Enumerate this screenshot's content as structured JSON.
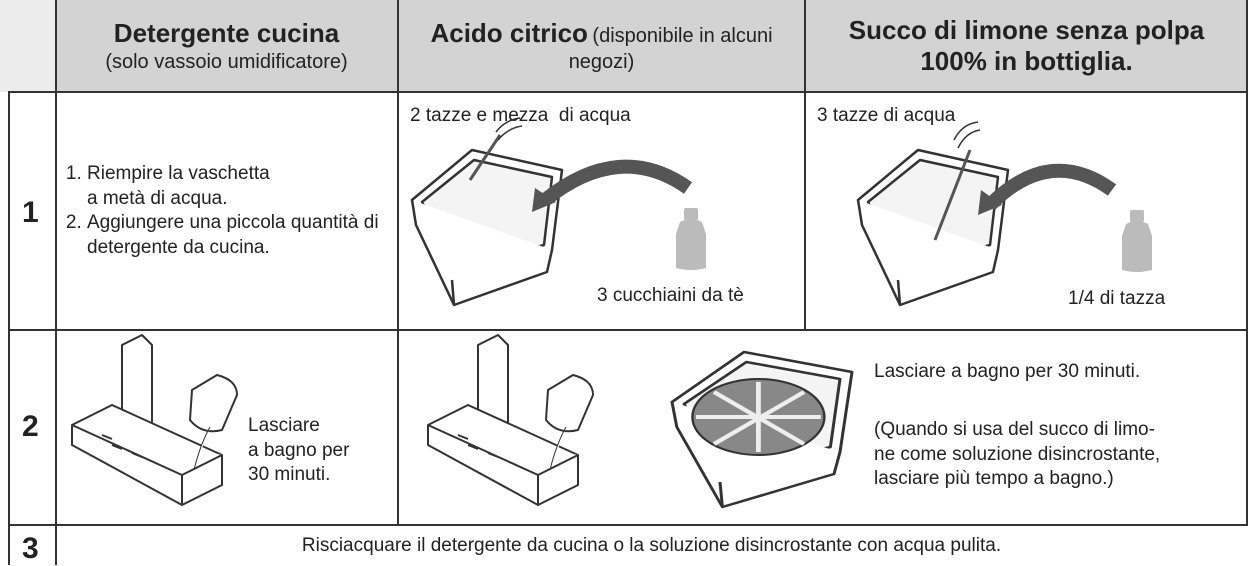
{
  "header": {
    "columns": [
      {
        "title": "Detergente cucina",
        "note": "(solo vassoio umidificatore)"
      },
      {
        "title": "Acido citrico",
        "note": "(disponibile in alcuni negozi)"
      },
      {
        "title": "Succo di limone senza polpa 100% in bottiglia."
      }
    ]
  },
  "rows": [
    {
      "step": "1",
      "detergent": [
        "Riempire la vaschetta\na metà di acqua.",
        "Aggiungere una piccola quantità di detergente da cucina."
      ],
      "citric": {
        "water": "2 tazze e mezza  di acqua",
        "amount": "3 cucchiaini da tè"
      },
      "lemon": {
        "water": "3 tazze di acqua",
        "amount": "1/4 di tazza"
      }
    },
    {
      "step": "2",
      "detergent": "Lasciare\na bagno per\n30 minuti.",
      "soak": "Lasciare a bagno per 30 minuti.",
      "note": "(Quando si usa del succo di limo-\nne come soluzione disincrostante,\nlasciare più tempo a bagno.)"
    },
    {
      "step": "3",
      "text": "Risciacquare il detergente da cucina o la soluzione disincrostante con acqua pulita."
    }
  ]
}
